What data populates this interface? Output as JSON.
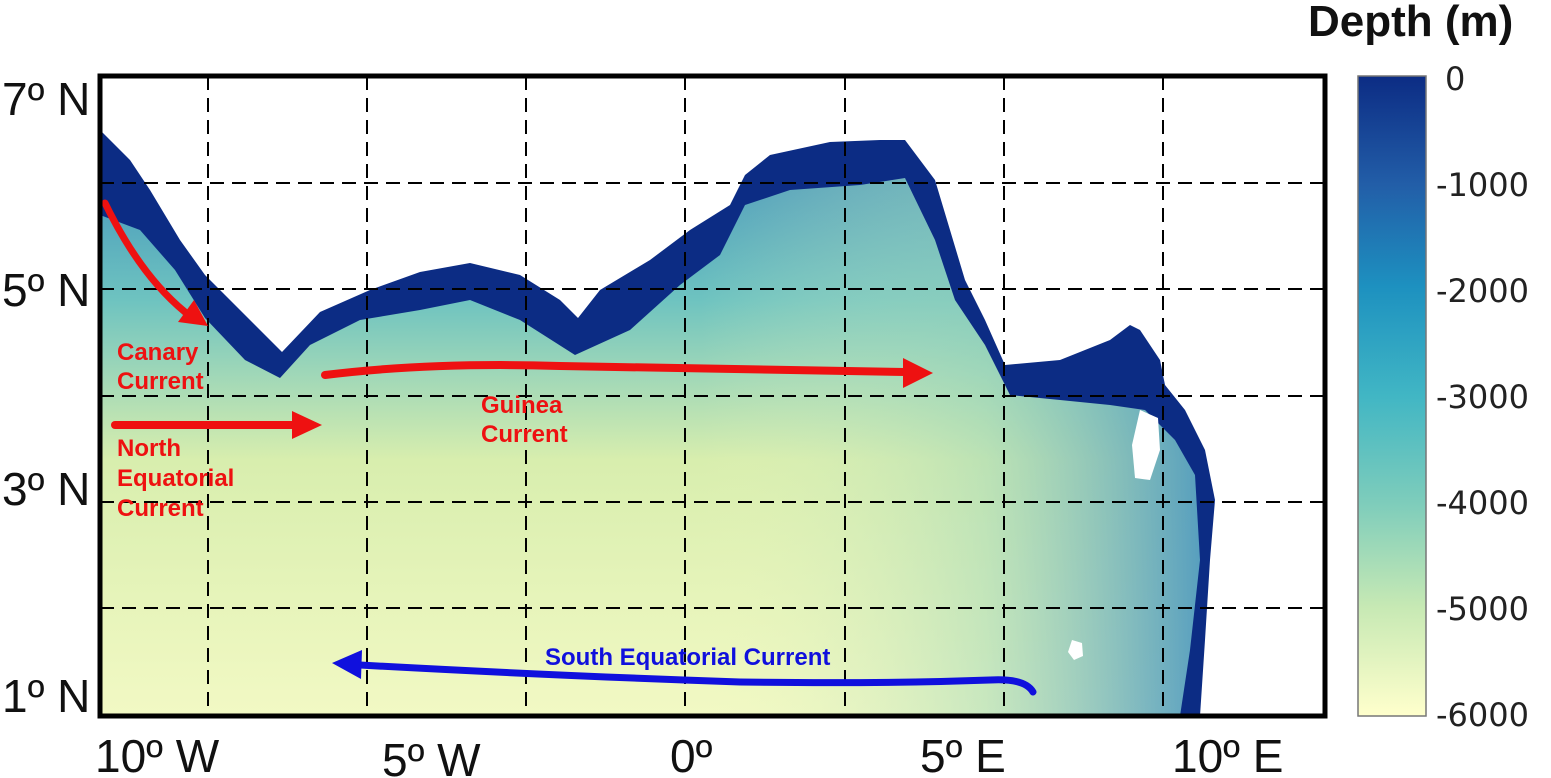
{
  "title": "Depth (m)",
  "lat_labels": [
    "7º N",
    "5º N",
    "3º N",
    "1º N"
  ],
  "lon_labels": [
    "10º W",
    "5º W",
    "0º",
    "5º E",
    "10º E"
  ],
  "colorbar": {
    "ticks": [
      "0",
      "-1000",
      "-2000",
      "-3000",
      "-4000",
      "-5000",
      "-6000"
    ],
    "colors": [
      "#ffffcc",
      "#c7e9b4",
      "#7fcdbb",
      "#41b6c4",
      "#1d91c0",
      "#225ea8",
      "#0c2c84"
    ]
  },
  "currents": {
    "canary": [
      "Canary",
      "Current"
    ],
    "north_equatorial": [
      "North",
      "Equatorial",
      "Current"
    ],
    "guinea": [
      "Guinea",
      "Current"
    ],
    "south_equatorial": "South Equatorial Current"
  },
  "colors": {
    "arrow_red": "#ee1111",
    "arrow_blue": "#1010dd",
    "land": "#ffffff"
  }
}
